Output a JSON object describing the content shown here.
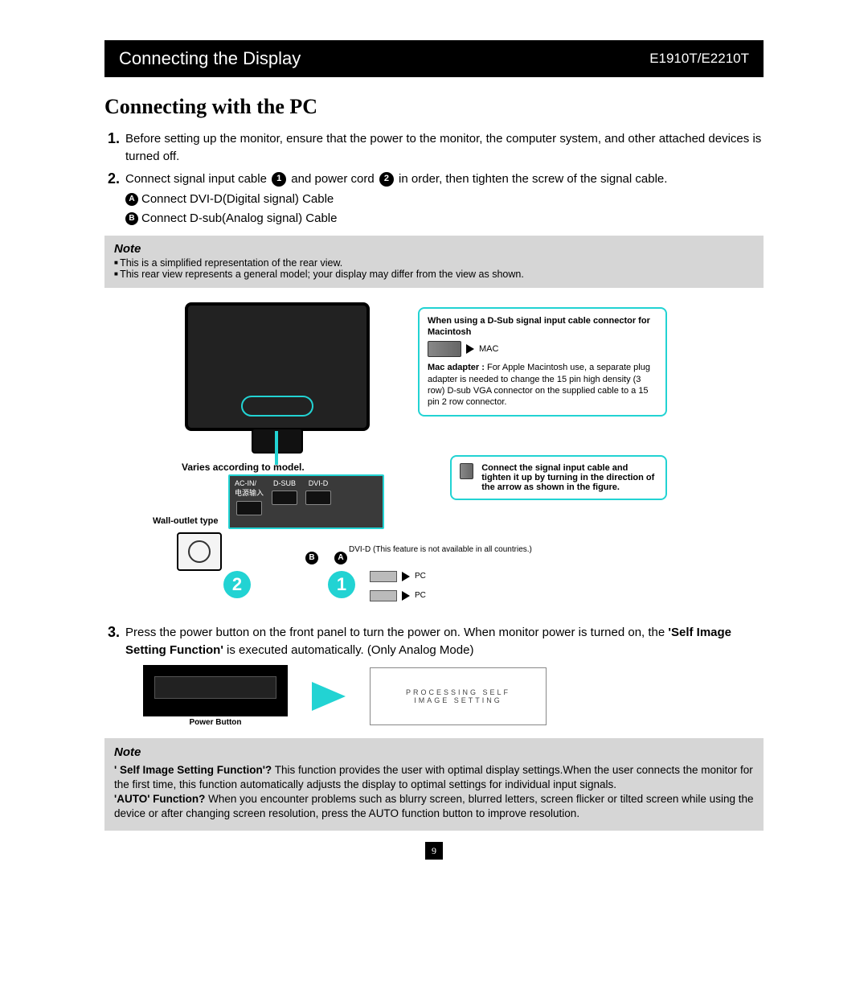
{
  "header": {
    "title": "Connecting the Display",
    "model": "E1910T/E2210T"
  },
  "section_title": "Connecting with the PC",
  "steps": {
    "s1": "Before setting up the monitor, ensure that the power to the monitor, the computer system, and other attached devices is turned off.",
    "s2_a": "Connect signal input cable",
    "s2_b": "and power cord",
    "s2_c": "in order, then tighten the screw of the signal cable.",
    "cable_a": "Connect DVI-D(Digital signal) Cable",
    "cable_b": "Connect D-sub(Analog signal) Cable",
    "s3_a": "Press the power button on the front panel to turn the power on. When monitor power is turned on, the ",
    "s3_b": "'Self Image Setting Function'",
    "s3_c": " is executed automatically. (Only Analog Mode)"
  },
  "note1": {
    "title": "Note",
    "items": [
      "This is a simplified representation of the rear view.",
      "This rear view represents a general model; your display may differ from the view as shown."
    ]
  },
  "diagram": {
    "varies": "Varies according to model.",
    "wall": "Wall-outlet type",
    "acin": "AC-IN/",
    "acin_cn": "电源输入",
    "dsub": "D-SUB",
    "dvid_port": "DVI-D",
    "dvid_note": "DVI-D (This feature is not available in all countries.)",
    "pc": "PC",
    "mac_title": "When using a D-Sub signal input cable connector for Macintosh",
    "mac_label": "MAC",
    "mac_adapter_bold": "Mac adapter : ",
    "mac_adapter_text": "For Apple Macintosh use, a separate plug adapter is needed to change the 15 pin high density (3 row) D-sub VGA connector on the supplied cable to a 15 pin 2 row connector.",
    "tighten": "Connect the signal input cable and tighten it up by turning in the direction of the arrow as shown in the figure."
  },
  "power": {
    "btn_label": "Power Button",
    "proc1": "PROCESSING SELF",
    "proc2": "IMAGE SETTING"
  },
  "note2": {
    "title": "Note",
    "q1_bold": "' Self Image Setting Function'?",
    "q1_text": " This function provides the user with optimal display settings.When the user connects the monitor for the first time, this function automatically adjusts the display to optimal settings for individual input signals.",
    "q2_bold": "'AUTO' Function?",
    "q2_text": " When you encounter problems such as blurry screen, blurred letters, screen flicker or tilted screen while using the device or after changing screen resolution, press the AUTO function button to improve resolution."
  },
  "page_number": "9",
  "colors": {
    "accent": "#22d3d3",
    "black": "#000000",
    "grey_box": "#d6d6d6"
  }
}
